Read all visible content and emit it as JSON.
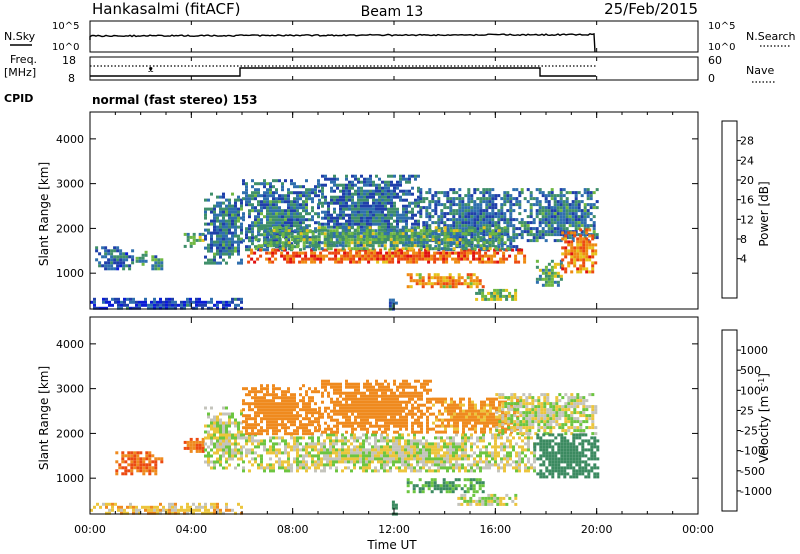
{
  "header": {
    "radar": "Hankasalmi (fitACF)",
    "beam": "Beam 13",
    "date": "25/Feb/2015"
  },
  "noise_panel": {
    "left_label": "N.Sky",
    "right_label": "N.Search",
    "left_ticks": [
      "10^5",
      "10^0"
    ],
    "right_ticks": [
      "10^5",
      "10^0"
    ]
  },
  "freq_panel": {
    "left_label": "Freq.",
    "left_unit": "[MHz]",
    "right_label": "Nave",
    "left_ticks": [
      "18",
      "8"
    ],
    "right_ticks": [
      "60",
      "0"
    ]
  },
  "cpid": {
    "label": "CPID",
    "value": "normal (fast stereo) 153"
  },
  "colors": {
    "power_scale": [
      "#0a1cd6",
      "#1f3faa",
      "#2f6fae",
      "#3f8f6a",
      "#6fb842",
      "#e6c21c",
      "#ef8a12",
      "#ec4a10",
      "#e01010"
    ],
    "velocity_scale": [
      "#1a28c8",
      "#2f57c2",
      "#3b8a60",
      "#6cc540",
      "#c4c4bc",
      "#ecc53c",
      "#ef8a1e",
      "#ec4a10",
      "#e01010"
    ]
  },
  "chart_data": [
    {
      "type": "heatmap",
      "name": "power",
      "ylabel": "Slant Range [km]",
      "yticks": [
        "1000",
        "2000",
        "3000",
        "4000"
      ],
      "ylim": [
        200,
        4600
      ],
      "xlim_hours": [
        0,
        24
      ],
      "colorbar": {
        "label": "Power [dB]",
        "ticks": [
          "4",
          "8",
          "12",
          "16",
          "20",
          "24",
          "28"
        ],
        "range": [
          0,
          32
        ]
      },
      "regions": [
        {
          "t0": 0.2,
          "t1": 1.7,
          "r0": 1100,
          "r1": 1600,
          "level": 8
        },
        {
          "t0": 1.8,
          "t1": 2.2,
          "r0": 1200,
          "r1": 1500,
          "level": 14
        },
        {
          "t0": 2.3,
          "t1": 2.8,
          "r0": 1100,
          "r1": 1400,
          "level": 12
        },
        {
          "t0": 3.7,
          "t1": 4.5,
          "r0": 1600,
          "r1": 1900,
          "level": 14
        },
        {
          "t0": 4.5,
          "t1": 6.0,
          "r0": 1200,
          "r1": 2800,
          "level": 10
        },
        {
          "t0": 6.0,
          "t1": 9.0,
          "r0": 1500,
          "r1": 3100,
          "level": 10
        },
        {
          "t0": 9.0,
          "t1": 13.0,
          "r0": 1600,
          "r1": 3200,
          "level": 9
        },
        {
          "t0": 13.0,
          "t1": 17.0,
          "r0": 1500,
          "r1": 2900,
          "level": 9
        },
        {
          "t0": 17.0,
          "t1": 20.0,
          "r0": 1700,
          "r1": 2900,
          "level": 10
        },
        {
          "t0": 6.2,
          "t1": 17.2,
          "r0": 1250,
          "r1": 1550,
          "level": 26
        },
        {
          "t0": 6.5,
          "t1": 16.5,
          "r0": 1550,
          "r1": 2050,
          "level": 14
        },
        {
          "t0": 12.5,
          "t1": 15.5,
          "r0": 700,
          "r1": 1000,
          "level": 22
        },
        {
          "t0": 15.2,
          "t1": 16.8,
          "r0": 400,
          "r1": 650,
          "level": 16
        },
        {
          "t0": 17.6,
          "t1": 18.6,
          "r0": 700,
          "r1": 1300,
          "level": 14
        },
        {
          "t0": 18.6,
          "t1": 20.0,
          "r0": 1000,
          "r1": 2000,
          "level": 24
        },
        {
          "t0": 0.0,
          "t1": 6.0,
          "r0": 200,
          "r1": 450,
          "level": 6
        },
        {
          "t0": 11.8,
          "t1": 12.1,
          "r0": 200,
          "r1": 500,
          "level": 8
        }
      ]
    },
    {
      "type": "heatmap",
      "name": "velocity",
      "ylabel": "Slant Range [km]",
      "yticks": [
        "1000",
        "2000",
        "3000",
        "4000"
      ],
      "ylim": [
        200,
        4600
      ],
      "xlim_hours": [
        0,
        24
      ],
      "xticks": [
        "00:00",
        "04:00",
        "08:00",
        "12:00",
        "16:00",
        "20:00",
        "00:00"
      ],
      "xlabel": "Time UT",
      "colorbar": {
        "label": "Velocity [m s",
        "label_sup": "-1",
        "ticks": [
          "1000",
          "500",
          "100",
          "25",
          "-25",
          "-100",
          "-500",
          "-1000"
        ]
      },
      "regions": [
        {
          "t0": 1.0,
          "t1": 2.8,
          "r0": 1100,
          "r1": 1600,
          "level": -500
        },
        {
          "t0": 3.7,
          "t1": 4.5,
          "r0": 1600,
          "r1": 1900,
          "level": -500
        },
        {
          "t0": 4.5,
          "t1": 6.0,
          "r0": 1200,
          "r1": 2600,
          "level": 0
        },
        {
          "t0": 6.0,
          "t1": 17.5,
          "r0": 1150,
          "r1": 2000,
          "level": 0
        },
        {
          "t0": 6.0,
          "t1": 9.0,
          "r0": 2000,
          "r1": 3100,
          "level": -300
        },
        {
          "t0": 9.0,
          "t1": 13.5,
          "r0": 2000,
          "r1": 3200,
          "level": -200
        },
        {
          "t0": 13.5,
          "t1": 17.0,
          "r0": 2000,
          "r1": 2800,
          "level": -150
        },
        {
          "t0": 16.0,
          "t1": 20.0,
          "r0": 2000,
          "r1": 2900,
          "level": 0
        },
        {
          "t0": 17.5,
          "t1": 20.0,
          "r0": 1000,
          "r1": 2000,
          "level": 300
        },
        {
          "t0": 12.5,
          "t1": 15.5,
          "r0": 700,
          "r1": 1000,
          "level": 100
        },
        {
          "t0": 14.5,
          "t1": 16.8,
          "r0": 400,
          "r1": 650,
          "level": 0
        },
        {
          "t0": 0.0,
          "t1": 6.0,
          "r0": 200,
          "r1": 450,
          "level": -60
        },
        {
          "t0": 11.8,
          "t1": 12.1,
          "r0": 200,
          "r1": 500,
          "level": 400
        }
      ]
    }
  ]
}
